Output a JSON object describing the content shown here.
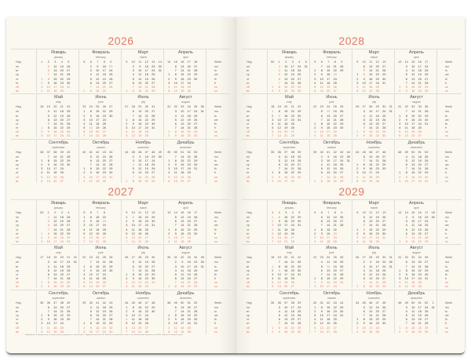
{
  "pages": [
    {
      "side": "left",
      "years": [
        2026,
        2027
      ]
    },
    {
      "side": "right",
      "years": [
        2028,
        2029
      ]
    }
  ],
  "labels": {
    "week_ru": "Нед",
    "week_en": "Week",
    "weekdays_ru": [
      "пн",
      "вт",
      "ср",
      "чт",
      "пт",
      "сб",
      "вс"
    ],
    "weekdays_en": [
      "mo",
      "tu",
      "we",
      "th",
      "fr",
      "sa",
      "su"
    ]
  },
  "months": [
    {
      "ru": "Январь",
      "en": "january"
    },
    {
      "ru": "Февраль",
      "en": "february"
    },
    {
      "ru": "Март",
      "en": "march"
    },
    {
      "ru": "Апрель",
      "en": "april"
    },
    {
      "ru": "Май",
      "en": "may"
    },
    {
      "ru": "Июнь",
      "en": "june"
    },
    {
      "ru": "Июль",
      "en": "july"
    },
    {
      "ru": "Август",
      "en": "august"
    },
    {
      "ru": "Сентябрь",
      "en": "september"
    },
    {
      "ru": "Октябрь",
      "en": "october"
    },
    {
      "ru": "Ноябрь",
      "en": "november"
    },
    {
      "ru": "Декабрь",
      "en": "december"
    }
  ],
  "holidays": [
    "01-01",
    "01-02",
    "01-03",
    "01-04",
    "01-05",
    "01-06",
    "01-07",
    "01-08",
    "02-23",
    "03-08",
    "05-01",
    "05-09",
    "06-12",
    "11-04"
  ],
  "colors": {
    "accent": "#e27a68",
    "page": "#fbf8ef",
    "text": "#555555"
  },
  "footnote": "Информация о праздничных и выходных днях приведена в соответствии с Трудовым кодексом РФ. Возможны изменения в связи с постановлениями Правительства РФ о переносе выходных дней."
}
